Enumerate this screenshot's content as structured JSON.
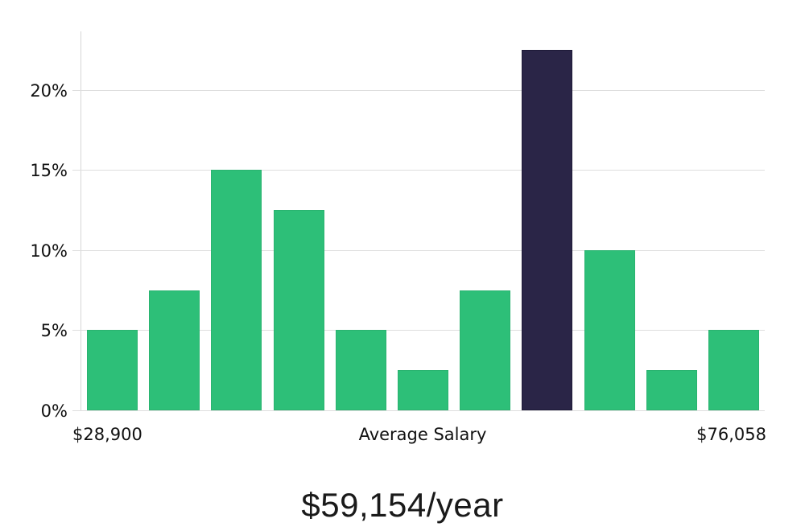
{
  "chart_data": {
    "type": "bar",
    "title": "",
    "caption": "$59,154/year",
    "values": [
      5,
      7.5,
      15,
      12.5,
      5,
      2.5,
      7.5,
      22.5,
      10,
      2.5,
      5
    ],
    "value_unit": "%",
    "highlight_index": 7,
    "ytick_values": [
      0,
      5,
      10,
      15,
      20
    ],
    "ytick_labels": [
      "0%",
      "5%",
      "10%",
      "15%",
      "20%"
    ],
    "ylim": [
      0,
      23.7
    ],
    "grid": true,
    "x_axis_labels": {
      "left": "$28,900",
      "center": "Average Salary",
      "right": "$76,058"
    },
    "colors": {
      "bar": "#2dbf78",
      "bar_edge": "rgba(0,0,0,0.06)",
      "highlight": "#2a2547",
      "highlight_edge": "#1e1a38",
      "grid": "#dedede",
      "text": "#111111",
      "background": "#ffffff"
    }
  }
}
